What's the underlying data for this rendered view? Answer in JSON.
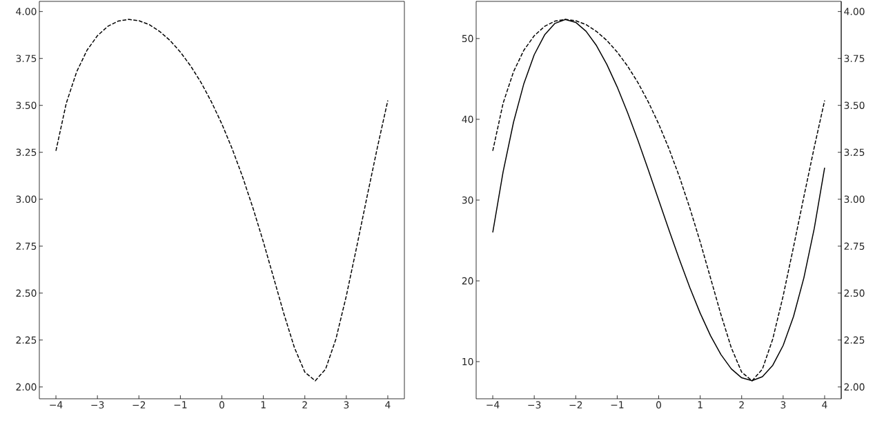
{
  "chart_data": [
    {
      "type": "line",
      "x": [
        -4,
        -3.75,
        -3.5,
        -3.25,
        -3,
        -2.75,
        -2.5,
        -2.25,
        -2,
        -1.75,
        -1.5,
        -1.25,
        -1,
        -0.75,
        -0.5,
        -0.25,
        0,
        0.25,
        0.5,
        0.75,
        1,
        1.25,
        1.5,
        1.75,
        2,
        2.25,
        2.5,
        2.75,
        3,
        3.25,
        3.5,
        3.75,
        4
      ],
      "series": [
        {
          "color": "#000000",
          "line_style": "dashed",
          "values": [
            3.258,
            3.512,
            3.679,
            3.794,
            3.871,
            3.921,
            3.949,
            3.958,
            3.951,
            3.93,
            3.894,
            3.846,
            3.784,
            3.709,
            3.621,
            3.518,
            3.401,
            3.268,
            3.119,
            2.953,
            2.773,
            2.58,
            2.386,
            2.209,
            2.079,
            2.033,
            2.095,
            2.256,
            2.485,
            2.746,
            3.014,
            3.277,
            3.526
          ]
        }
      ],
      "xlim": [
        -4.4,
        4.4
      ],
      "ylim": [
        1.937,
        4.054
      ],
      "xticks": [
        {
          "value": -4,
          "label": "−4"
        },
        {
          "value": -3,
          "label": "−3"
        },
        {
          "value": -2,
          "label": "−2"
        },
        {
          "value": -1,
          "label": "−1"
        },
        0,
        1,
        2,
        3,
        4
      ],
      "yticks": [
        {
          "value": 2,
          "label": "2.00"
        },
        {
          "value": 2.25,
          "label": "2.25"
        },
        {
          "value": 2.5,
          "label": "2.50"
        },
        {
          "value": 2.75,
          "label": "2.75"
        },
        {
          "value": 3,
          "label": "3.00"
        },
        {
          "value": 3.25,
          "label": "3.25"
        },
        {
          "value": 3.5,
          "label": "3.50"
        },
        {
          "value": 3.75,
          "label": "3.75"
        },
        {
          "value": 4,
          "label": "4.00"
        }
      ]
    },
    {
      "type": "line",
      "x": [
        -4,
        -3.75,
        -3.5,
        -3.25,
        -3,
        -2.75,
        -2.5,
        -2.25,
        -2,
        -1.75,
        -1.5,
        -1.25,
        -1,
        -0.75,
        -0.5,
        -0.25,
        0,
        0.25,
        0.5,
        0.75,
        1,
        1.25,
        1.5,
        1.75,
        2,
        2.25,
        2.5,
        2.75,
        3,
        3.25,
        3.5,
        3.75,
        4
      ],
      "series": [
        {
          "color": "#000000",
          "line_style": "solid",
          "values": [
            26,
            33.52,
            39.63,
            44.42,
            48,
            50.45,
            51.88,
            52.36,
            52,
            50.89,
            49.13,
            46.8,
            44,
            40.83,
            37.38,
            33.73,
            30,
            26.27,
            22.63,
            19.17,
            16,
            13.2,
            10.88,
            9.11,
            8,
            7.64,
            8.13,
            9.55,
            12,
            15.58,
            20.38,
            26.48,
            34
          ]
        },
        {
          "color": "#000000",
          "line_style": "dashed",
          "axis": "y2",
          "values": [
            3.258,
            3.512,
            3.679,
            3.794,
            3.871,
            3.921,
            3.949,
            3.958,
            3.951,
            3.93,
            3.894,
            3.846,
            3.784,
            3.709,
            3.621,
            3.518,
            3.401,
            3.268,
            3.119,
            2.953,
            2.773,
            2.58,
            2.386,
            2.209,
            2.079,
            2.033,
            2.095,
            2.256,
            2.485,
            2.746,
            3.014,
            3.277,
            3.526
          ]
        }
      ],
      "xlim": [
        -4.4,
        4.4
      ],
      "ylim": [
        5.4,
        54.6
      ],
      "y2lim": [
        1.937,
        4.054
      ],
      "xticks": [
        {
          "value": -4,
          "label": "−4"
        },
        {
          "value": -3,
          "label": "−3"
        },
        {
          "value": -2,
          "label": "−2"
        },
        {
          "value": -1,
          "label": "−1"
        },
        0,
        1,
        2,
        3,
        4
      ],
      "yticks": [
        10,
        20,
        30,
        40,
        50
      ],
      "y2ticks": [
        {
          "value": 2,
          "label": "2.00"
        },
        {
          "value": 2.25,
          "label": "2.25"
        },
        {
          "value": 2.5,
          "label": "2.50"
        },
        {
          "value": 2.75,
          "label": "2.75"
        },
        {
          "value": 3,
          "label": "3.00"
        },
        {
          "value": 3.25,
          "label": "3.25"
        },
        {
          "value": 3.5,
          "label": "3.50"
        },
        {
          "value": 3.75,
          "label": "3.75"
        },
        {
          "value": 4,
          "label": "4.00"
        }
      ]
    }
  ]
}
